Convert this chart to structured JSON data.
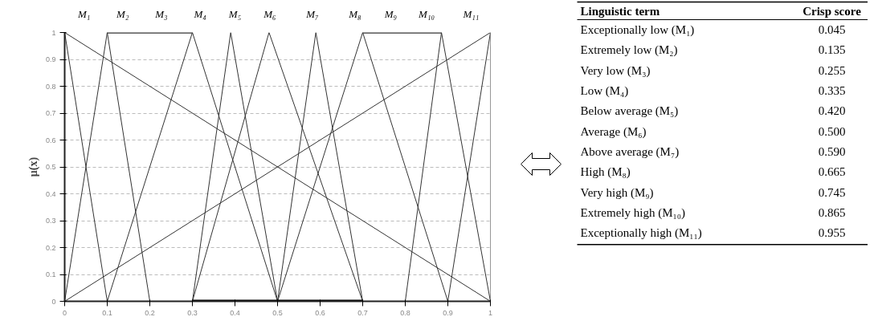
{
  "chart_data": [
    {
      "type": "line",
      "ylabel": "μ(x)",
      "xlim": [
        0,
        1
      ],
      "ylim": [
        0,
        1
      ],
      "xticks": [
        0,
        0.1,
        0.2,
        0.3,
        0.4,
        0.5,
        0.6,
        0.7,
        0.8,
        0.9,
        1
      ],
      "yticks": [
        0,
        0.1,
        0.2,
        0.3,
        0.4,
        0.5,
        0.6,
        0.7,
        0.8,
        0.9,
        1
      ],
      "grid": "y",
      "marker": "none",
      "line_style": "solid",
      "series": [
        {
          "name": "M₁",
          "color": "#333333",
          "x": [
            0,
            0.1
          ],
          "values": [
            1,
            0
          ]
        },
        {
          "name": "M₂",
          "color": "#333333",
          "x": [
            0,
            0.1,
            0.2
          ],
          "values": [
            0,
            1,
            0
          ]
        },
        {
          "name": "M₃",
          "color": "#333333",
          "x": [
            0.1,
            0.3
          ],
          "values": [
            1,
            1
          ]
        },
        {
          "name": "M₄",
          "color": "#333333",
          "x": [
            0.1,
            0.3,
            0.5
          ],
          "values": [
            0,
            1,
            0
          ]
        },
        {
          "name": "M₅",
          "color": "#333333",
          "x": [
            0.3,
            0.39,
            0.5
          ],
          "values": [
            0,
            1,
            0
          ]
        },
        {
          "name": "M₆",
          "color": "#333333",
          "x": [
            0.3,
            0.48,
            0.7
          ],
          "values": [
            0,
            1,
            0
          ]
        },
        {
          "name": "M₇",
          "color": "#333333",
          "x": [
            0.5,
            0.59,
            0.7
          ],
          "values": [
            0,
            1,
            0
          ]
        },
        {
          "name": "M₈",
          "color": "#333333",
          "x": [
            0.5,
            0.7,
            0.9
          ],
          "values": [
            0,
            1,
            0
          ]
        },
        {
          "name": "M₉",
          "color": "#333333",
          "x": [
            0.7,
            0.885
          ],
          "values": [
            1,
            1
          ]
        },
        {
          "name": "M₁₀",
          "color": "#333333",
          "x": [
            0.8,
            0.885,
            1
          ],
          "values": [
            0,
            1,
            0
          ]
        },
        {
          "name": "M₁₁",
          "color": "#333333",
          "x": [
            0.9,
            1,
            1
          ],
          "values": [
            0,
            1,
            0
          ]
        },
        {
          "color": "#333333",
          "x": [
            0,
            1
          ],
          "values": [
            1,
            0
          ]
        },
        {
          "color": "#333333",
          "x": [
            0,
            1
          ],
          "values": [
            0,
            1
          ]
        },
        {
          "color": "#000000",
          "x": [
            0.3,
            0.7
          ],
          "values": [
            0,
            0
          ]
        }
      ]
    },
    {
      "type": "other",
      "annotations": [
        "Linguistic term",
        "Crisp score"
      ],
      "categories": [
        "Exceptionally low (M₁)",
        "Extremely low (M₂)",
        "Very low (M₃)",
        "Low (M₄)",
        "Below average (M₅)",
        "Average (M₆)",
        "Above average (M₇)",
        "High (M₈)",
        "Very high (M₉)",
        "Extremely high (M₁₀)",
        "Exceptionally high (M₁₁)"
      ],
      "values": [
        0.045,
        0.135,
        0.255,
        0.335,
        0.42,
        0.5,
        0.59,
        0.665,
        0.745,
        0.865,
        0.955
      ],
      "value_labels": [
        "0.045",
        "0.135",
        "0.255",
        "0.335",
        "0.420",
        "0.500",
        "0.590",
        "0.665",
        "0.745",
        "0.865",
        "0.955"
      ]
    }
  ]
}
